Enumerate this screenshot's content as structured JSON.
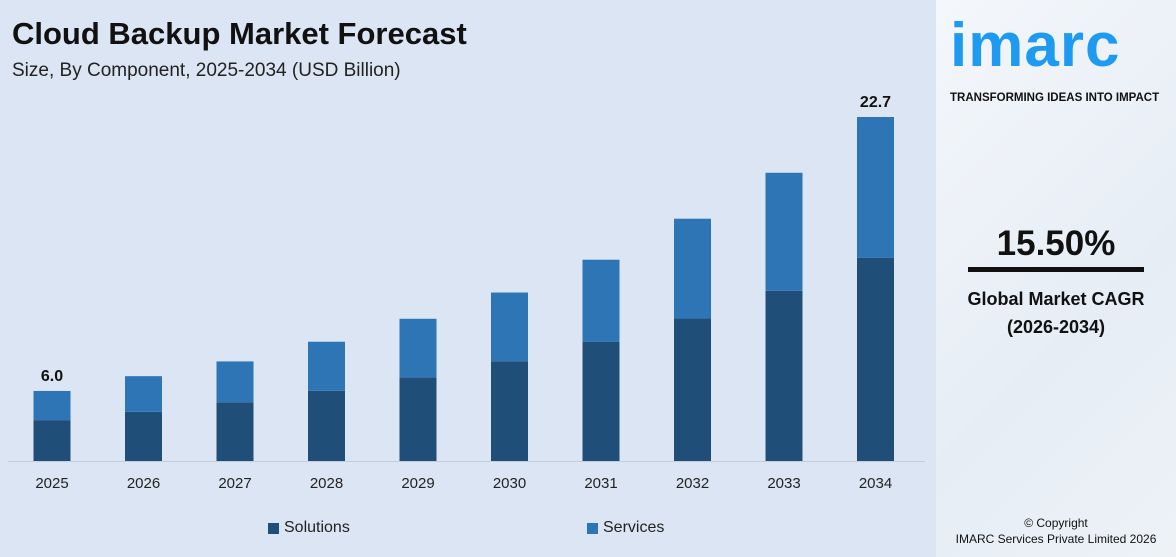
{
  "title": "Cloud Backup Market Forecast",
  "subtitle": "Size, By Component, 2025-2034 (USD Billion)",
  "colors": {
    "solutions": "#1f4e79",
    "services": "#2e75b6",
    "accent": "#1e9bf0"
  },
  "chart_data": {
    "type": "bar",
    "stacked": true,
    "categories": [
      "2025",
      "2026",
      "2027",
      "2028",
      "2029",
      "2030",
      "2031",
      "2032",
      "2033",
      "2034"
    ],
    "series": [
      {
        "name": "Solutions",
        "values": [
          3.5,
          4.0,
          4.6,
          5.3,
          6.1,
          7.1,
          8.3,
          9.7,
          11.4,
          13.4
        ]
      },
      {
        "name": "Services",
        "values": [
          2.5,
          2.9,
          3.2,
          3.7,
          4.3,
          4.9,
          5.7,
          6.8,
          7.9,
          9.3
        ]
      }
    ],
    "data_labels": {
      "2025": "6.0",
      "2034": "22.7"
    },
    "legend": "bottom",
    "grid": false
  },
  "side": {
    "logo": "imarc",
    "tagline": "TRANSFORMING IDEAS INTO IMPACT",
    "cagr": "15.50%",
    "cagr_label": "Global Market CAGR",
    "cagr_period": "(2026-2034)",
    "copyright": "© Copyright",
    "company": "IMARC Services Private Limited 2026"
  }
}
